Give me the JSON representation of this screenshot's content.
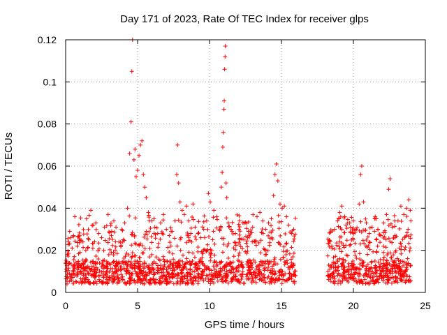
{
  "chart_data": {
    "type": "scatter",
    "title": "Day 171 of 2023, Rate Of TEC Index for receiver glps",
    "xlabel": "GPS time / hours",
    "ylabel": "ROTI / TECUs",
    "xlim": [
      0,
      25
    ],
    "ylim": [
      0,
      0.12
    ],
    "xticks": [
      "0",
      "5",
      "10",
      "15",
      "20",
      "25"
    ],
    "yticks": [
      "0",
      "0.02",
      "0.04",
      "0.06",
      "0.08",
      "0.1",
      "0.12"
    ],
    "grid": true,
    "legend": "none",
    "marker": "plus",
    "series": [
      {
        "color": "#ff0000",
        "points": [
          [
            0.05,
            0.011
          ],
          [
            0.12,
            0.018
          ],
          [
            0.2,
            0.024
          ],
          [
            0.28,
            0.029
          ],
          [
            0.35,
            0.026
          ],
          [
            0.45,
            0.021
          ],
          [
            0.6,
            0.017
          ],
          [
            0.8,
            0.022
          ],
          [
            1.0,
            0.019
          ],
          [
            1.2,
            0.024
          ],
          [
            1.4,
            0.02
          ],
          [
            1.6,
            0.025
          ],
          [
            1.75,
            0.039
          ],
          [
            1.9,
            0.032
          ],
          [
            2.1,
            0.033
          ],
          [
            2.3,
            0.028
          ],
          [
            2.5,
            0.026
          ],
          [
            2.7,
            0.031
          ],
          [
            2.95,
            0.037
          ],
          [
            3.2,
            0.029
          ],
          [
            3.35,
            0.034
          ],
          [
            3.5,
            0.031
          ],
          [
            3.7,
            0.024
          ],
          [
            3.9,
            0.03
          ],
          [
            4.1,
            0.033
          ],
          [
            4.3,
            0.04
          ],
          [
            4.45,
            0.066
          ],
          [
            4.55,
            0.081
          ],
          [
            4.6,
            0.105
          ],
          [
            4.65,
            0.12
          ],
          [
            4.75,
            0.063
          ],
          [
            4.82,
            0.068
          ],
          [
            4.9,
            0.055
          ],
          [
            5.0,
            0.058
          ],
          [
            5.1,
            0.065
          ],
          [
            5.2,
            0.07
          ],
          [
            5.3,
            0.072
          ],
          [
            5.4,
            0.056
          ],
          [
            5.5,
            0.05
          ],
          [
            5.6,
            0.045
          ],
          [
            5.75,
            0.038
          ],
          [
            6.0,
            0.034
          ],
          [
            6.2,
            0.031
          ],
          [
            6.4,
            0.028
          ],
          [
            6.6,
            0.033
          ],
          [
            6.8,
            0.037
          ],
          [
            7.0,
            0.03
          ],
          [
            7.2,
            0.027
          ],
          [
            7.4,
            0.029
          ],
          [
            7.6,
            0.034
          ],
          [
            7.72,
            0.056
          ],
          [
            7.78,
            0.07
          ],
          [
            7.85,
            0.052
          ],
          [
            7.95,
            0.043
          ],
          [
            8.1,
            0.039
          ],
          [
            8.25,
            0.037
          ],
          [
            8.4,
            0.041
          ],
          [
            8.55,
            0.034
          ],
          [
            8.7,
            0.028
          ],
          [
            8.85,
            0.042
          ],
          [
            9.0,
            0.031
          ],
          [
            9.2,
            0.028
          ],
          [
            9.4,
            0.026
          ],
          [
            9.6,
            0.03
          ],
          [
            9.8,
            0.034
          ],
          [
            9.92,
            0.047
          ],
          [
            10.05,
            0.043
          ],
          [
            10.3,
            0.039
          ],
          [
            10.5,
            0.036
          ],
          [
            10.7,
            0.03
          ],
          [
            10.82,
            0.05
          ],
          [
            10.88,
            0.057
          ],
          [
            10.92,
            0.069
          ],
          [
            10.96,
            0.076
          ],
          [
            11.0,
            0.087
          ],
          [
            11.02,
            0.091
          ],
          [
            11.05,
            0.106
          ],
          [
            11.08,
            0.112
          ],
          [
            11.1,
            0.117
          ],
          [
            11.15,
            0.052
          ],
          [
            11.2,
            0.045
          ],
          [
            11.3,
            0.033
          ],
          [
            11.5,
            0.03
          ],
          [
            11.8,
            0.028
          ],
          [
            12.1,
            0.025
          ],
          [
            12.4,
            0.033
          ],
          [
            12.7,
            0.029
          ],
          [
            13.0,
            0.031
          ],
          [
            13.3,
            0.036
          ],
          [
            13.5,
            0.038
          ],
          [
            13.7,
            0.034
          ],
          [
            13.9,
            0.03
          ],
          [
            14.1,
            0.033
          ],
          [
            14.3,
            0.035
          ],
          [
            14.45,
            0.046
          ],
          [
            14.55,
            0.056
          ],
          [
            14.65,
            0.061
          ],
          [
            14.75,
            0.053
          ],
          [
            14.9,
            0.042
          ],
          [
            15.05,
            0.04
          ],
          [
            15.2,
            0.041
          ],
          [
            15.35,
            0.036
          ],
          [
            15.5,
            0.032
          ],
          [
            15.7,
            0.028
          ],
          [
            15.85,
            0.03
          ],
          [
            18.5,
            0.022
          ],
          [
            18.7,
            0.03
          ],
          [
            18.9,
            0.034
          ],
          [
            19.05,
            0.038
          ],
          [
            19.2,
            0.041
          ],
          [
            19.4,
            0.036
          ],
          [
            19.6,
            0.033
          ],
          [
            19.8,
            0.031
          ],
          [
            20.0,
            0.034
          ],
          [
            20.2,
            0.03
          ],
          [
            20.4,
            0.042
          ],
          [
            20.5,
            0.056
          ],
          [
            20.58,
            0.06
          ],
          [
            20.7,
            0.043
          ],
          [
            20.9,
            0.033
          ],
          [
            21.1,
            0.028
          ],
          [
            21.3,
            0.031
          ],
          [
            21.5,
            0.035
          ],
          [
            21.7,
            0.03
          ],
          [
            21.9,
            0.027
          ],
          [
            22.1,
            0.033
          ],
          [
            22.3,
            0.037
          ],
          [
            22.45,
            0.049
          ],
          [
            22.55,
            0.054
          ],
          [
            22.7,
            0.031
          ],
          [
            22.9,
            0.026
          ],
          [
            23.1,
            0.034
          ],
          [
            23.3,
            0.041
          ],
          [
            23.5,
            0.037
          ],
          [
            23.7,
            0.04
          ],
          [
            23.85,
            0.044
          ],
          [
            23.95,
            0.039
          ]
        ]
      }
    ],
    "dense_band": {
      "segments": [
        [
          0.0,
          16.0
        ],
        [
          18.2,
          24.0
        ]
      ],
      "y_min": 0.004,
      "y_typical": 0.015,
      "y_max": 0.03,
      "count": 1800
    }
  }
}
